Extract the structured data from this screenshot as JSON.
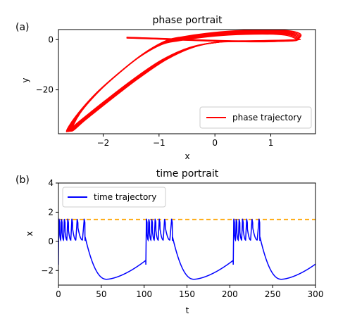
{
  "chart_data": [
    {
      "panel_label": "(a)",
      "type": "line",
      "title": "phase portrait",
      "xlabel": "x",
      "ylabel": "y",
      "xlim": [
        -2.8,
        1.8
      ],
      "ylim": [
        -37.5,
        4
      ],
      "xticks": [
        -2,
        -1,
        0,
        1
      ],
      "yticks": [
        0,
        -20
      ],
      "grid": false,
      "legend_position": "lower-right",
      "series": [
        {
          "name": "phase trajectory",
          "color": "#ff0000",
          "loops": 6,
          "x": [
            -1.58,
            -1.3,
            -0.9,
            -0.6,
            -0.2,
            0.3,
            0.8,
            1.2,
            1.45,
            1.5,
            1.3,
            0.9,
            0.3,
            -0.2,
            -0.6,
            -0.9,
            -1.3,
            -1.7,
            -2.1,
            -2.45,
            -2.6,
            -2.35,
            -1.9,
            -1.4,
            -0.9,
            -0.4,
            0.1,
            0.6,
            1.1,
            1.4,
            1.5
          ],
          "y": [
            0.8,
            0.6,
            0.3,
            0.0,
            -0.3,
            -0.6,
            -0.7,
            -0.5,
            -0.2,
            1.4,
            2.8,
            3.2,
            2.8,
            1.8,
            0.5,
            -1.0,
            -6.0,
            -13.0,
            -21.0,
            -30.0,
            -36.5,
            -32.0,
            -24.0,
            -15.5,
            -8.0,
            -3.0,
            -0.9,
            -0.6,
            -0.4,
            -0.2,
            0.0
          ]
        }
      ]
    },
    {
      "panel_label": "(b)",
      "type": "line",
      "title": "time portrait",
      "xlabel": "t",
      "ylabel": "x",
      "xlim": [
        0,
        300
      ],
      "ylim": [
        -3,
        4
      ],
      "xticks": [
        0,
        50,
        100,
        150,
        200,
        250,
        300
      ],
      "yticks": [
        -2,
        0,
        2,
        4
      ],
      "grid": false,
      "legend_position": "upper-left",
      "threshold": {
        "y": 1.5,
        "color": "#ffa500",
        "style": "dashed"
      },
      "burst_period": 102,
      "spike_times": [
        0.6,
        3.4,
        6.8,
        10.8,
        15.6,
        21.8,
        30.0
      ],
      "spike_peak": 1.55,
      "spike_trough": -0.25,
      "series": [
        {
          "name": "time trajectory",
          "color": "#0000ff"
        }
      ]
    }
  ]
}
